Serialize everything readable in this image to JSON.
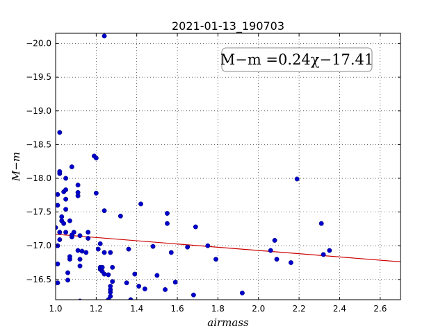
{
  "chart_data": {
    "type": "scatter",
    "title": "2021-01-13_190703",
    "xlabel": "airmass",
    "ylabel": "M−m",
    "xlim": [
      1.0,
      2.7
    ],
    "ylim": [
      -20.15,
      -16.2
    ],
    "y_inverted": true,
    "grid": true,
    "x_ticks": [
      1.0,
      1.2,
      1.4,
      1.6,
      1.8,
      2.0,
      2.2,
      2.4,
      2.6
    ],
    "x_tick_labels": [
      "1.0",
      "1.2",
      "1.4",
      "1.6",
      "1.8",
      "2.0",
      "2.2",
      "2.4",
      "2.6"
    ],
    "y_ticks": [
      -16.5,
      -17.0,
      -17.5,
      -18.0,
      -18.5,
      -19.0,
      -19.5,
      -20.0
    ],
    "y_tick_labels": [
      "−16.5",
      "−17.0",
      "−17.5",
      "−18.0",
      "−18.5",
      "−19.0",
      "−19.5",
      "−20.0"
    ],
    "point_color": "#0000cc",
    "fit_color": "#cc0000",
    "fit": {
      "slope": 0.24,
      "intercept": -17.41,
      "x_range": [
        1.0,
        2.7
      ]
    },
    "annotation": "M−m =0.24χ−17.41",
    "points": [
      [
        1.01,
        -16.45
      ],
      [
        1.01,
        -16.73
      ],
      [
        1.0,
        -17.27
      ],
      [
        1.01,
        -17.6
      ],
      [
        1.01,
        -17.76
      ],
      [
        1.02,
        -18.07
      ],
      [
        1.02,
        -18.1
      ],
      [
        1.02,
        -18.68
      ],
      [
        1.01,
        -17.0
      ],
      [
        1.02,
        -17.09
      ],
      [
        1.02,
        -17.2
      ],
      [
        1.03,
        -17.37
      ],
      [
        1.03,
        -17.43
      ],
      [
        1.04,
        -17.33
      ],
      [
        1.04,
        -17.8
      ],
      [
        1.05,
        -17.54
      ],
      [
        1.05,
        -17.69
      ],
      [
        1.05,
        -18.0
      ],
      [
        1.05,
        -17.83
      ],
      [
        1.05,
        -17.2
      ],
      [
        1.06,
        -16.49
      ],
      [
        1.06,
        -16.6
      ],
      [
        1.07,
        -16.8
      ],
      [
        1.07,
        -16.84
      ],
      [
        1.07,
        -17.37
      ],
      [
        1.08,
        -17.13
      ],
      [
        1.08,
        -17.16
      ],
      [
        1.08,
        -18.17
      ],
      [
        1.09,
        -17.2
      ],
      [
        1.11,
        -16.93
      ],
      [
        1.11,
        -17.74
      ],
      [
        1.11,
        -17.79
      ],
      [
        1.11,
        -17.9
      ],
      [
        1.12,
        -17.15
      ],
      [
        1.12,
        -16.7
      ],
      [
        1.12,
        -16.8
      ],
      [
        1.13,
        -16.92
      ],
      [
        1.12,
        -16.18
      ],
      [
        1.15,
        -16.9
      ],
      [
        1.16,
        -17.11
      ],
      [
        1.16,
        -17.2
      ],
      [
        1.19,
        -18.33
      ],
      [
        1.2,
        -18.3
      ],
      [
        1.2,
        -17.78
      ],
      [
        1.21,
        -16.95
      ],
      [
        1.22,
        -16.65
      ],
      [
        1.22,
        -16.68
      ],
      [
        1.23,
        -16.68
      ],
      [
        1.23,
        -16.62
      ],
      [
        1.22,
        -17.03
      ],
      [
        1.24,
        -16.58
      ],
      [
        1.24,
        -16.9
      ],
      [
        1.24,
        -17.52
      ],
      [
        1.26,
        -16.57
      ],
      [
        1.26,
        -16.2
      ],
      [
        1.27,
        -16.25
      ],
      [
        1.27,
        -16.31
      ],
      [
        1.27,
        -16.35
      ],
      [
        1.27,
        -16.4
      ],
      [
        1.28,
        -16.47
      ],
      [
        1.28,
        -16.68
      ],
      [
        1.27,
        -16.9
      ],
      [
        1.24,
        -20.11
      ],
      [
        1.32,
        -17.44
      ],
      [
        1.35,
        -16.45
      ],
      [
        1.36,
        -16.95
      ],
      [
        1.37,
        -16.2
      ],
      [
        1.39,
        -16.58
      ],
      [
        1.41,
        -16.4
      ],
      [
        1.42,
        -17.62
      ],
      [
        1.44,
        -16.36
      ],
      [
        1.48,
        -16.99
      ],
      [
        1.5,
        -16.56
      ],
      [
        1.54,
        -16.35
      ],
      [
        1.55,
        -17.33
      ],
      [
        1.55,
        -17.48
      ],
      [
        1.57,
        -16.9
      ],
      [
        1.59,
        -16.46
      ],
      [
        1.65,
        -16.98
      ],
      [
        1.68,
        -16.27
      ],
      [
        1.69,
        -17.28
      ],
      [
        1.75,
        -17.0
      ],
      [
        1.79,
        -16.8
      ],
      [
        1.92,
        -16.3
      ],
      [
        2.06,
        -16.93
      ],
      [
        2.08,
        -17.08
      ],
      [
        2.09,
        -16.8
      ],
      [
        2.19,
        -17.99
      ],
      [
        2.31,
        -17.33
      ],
      [
        2.32,
        -16.87
      ],
      [
        2.35,
        -16.93
      ],
      [
        2.16,
        -16.75
      ]
    ]
  }
}
